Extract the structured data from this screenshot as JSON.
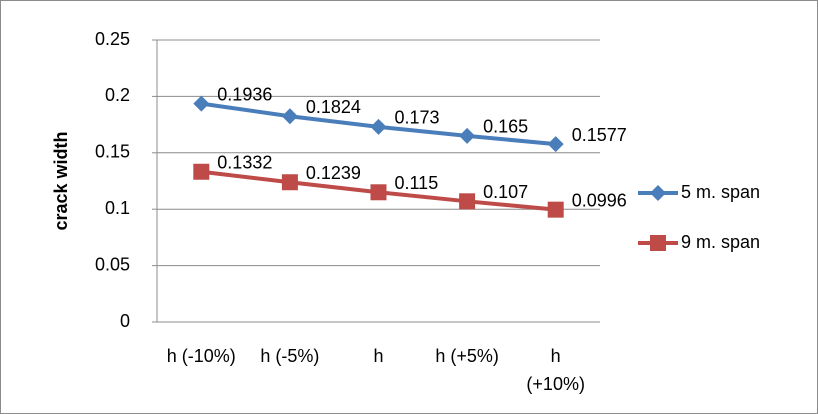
{
  "chart_data": {
    "type": "line",
    "y_label": "crack width",
    "categories": [
      "h (-10%)",
      "h (-5%)",
      "h",
      "h (+5%)",
      "h (+10%)"
    ],
    "series": [
      {
        "name": "5 m. span",
        "color": "#4a7ebb",
        "marker": "diamond",
        "values": [
          0.1936,
          0.1824,
          0.173,
          0.165,
          0.1577
        ]
      },
      {
        "name": "9 m. span",
        "color": "#be4b48",
        "marker": "square",
        "values": [
          0.1332,
          0.1239,
          0.115,
          0.107,
          0.0996
        ]
      }
    ],
    "ylim": [
      0,
      0.25
    ],
    "yticks": [
      0,
      0.05,
      0.1,
      0.15,
      0.2,
      0.25
    ],
    "grid": true,
    "legend": "right"
  }
}
